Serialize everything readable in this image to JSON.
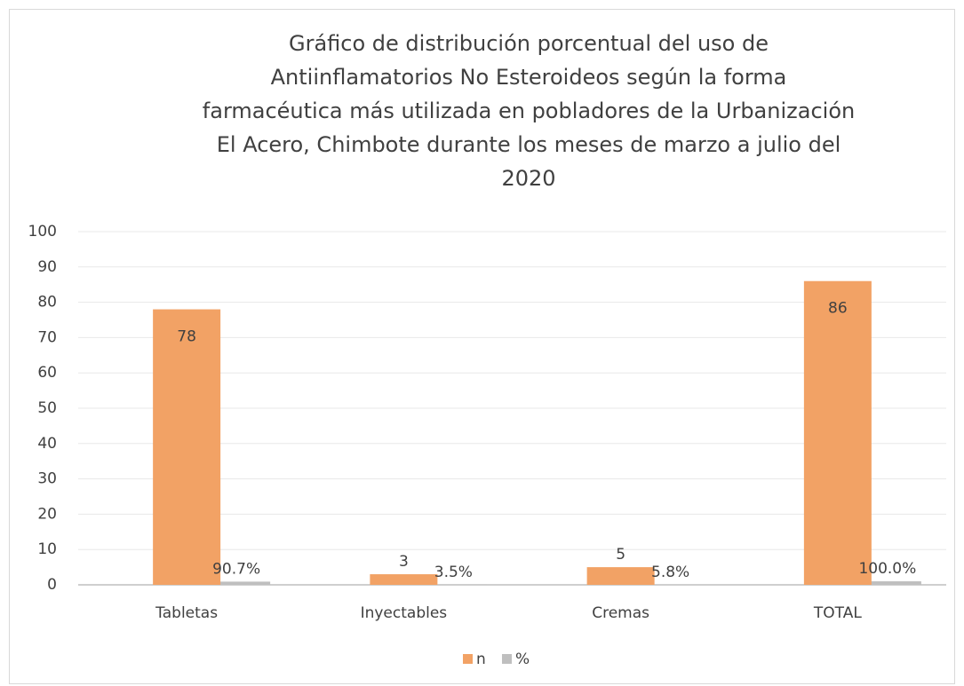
{
  "chart_data": {
    "type": "bar",
    "title": [
      "Gráfico de distribución porcentual del uso de",
      "Antiinflamatorios No Esteroideos según la forma",
      "farmacéutica más utilizada en pobladores  de la Urbanización",
      "El Acero, Chimbote durante los meses de marzo a julio del",
      "2020"
    ],
    "categories": [
      "Tabletas",
      "Inyectables",
      "Cremas",
      "TOTAL"
    ],
    "series": [
      {
        "name": "n",
        "color": "#f2a265",
        "values": [
          78,
          3,
          5,
          86
        ]
      },
      {
        "name": "%",
        "color": "#bfbfbf",
        "values": [
          0.907,
          0.035,
          0.058,
          1.0
        ],
        "value_labels": [
          "90.7%",
          "3.5%",
          "5.8%",
          "100.0%"
        ]
      }
    ],
    "ylim": [
      0,
      100
    ],
    "yticks": [
      0,
      10,
      20,
      30,
      40,
      50,
      60,
      70,
      80,
      90,
      100
    ],
    "grid": true,
    "legend": "bottom"
  }
}
